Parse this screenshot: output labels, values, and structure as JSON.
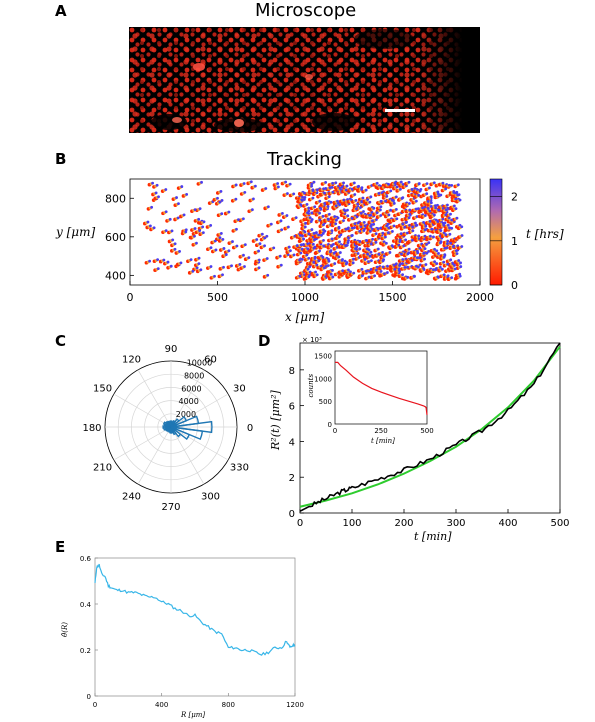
{
  "panels": {
    "a": {
      "label": "A",
      "title": "Microscope"
    },
    "b": {
      "label": "B",
      "title": "Tracking"
    },
    "c": {
      "label": "C"
    },
    "d": {
      "label": "D"
    },
    "e": {
      "label": "E"
    }
  },
  "colors": {
    "cells": "#e0281c",
    "track_early": "#ff2a00",
    "track_mid": "#f2a23a",
    "track_late": "#4b3cf0",
    "rose": "#1f77b4",
    "msd_data": "#000000",
    "msd_fit": "#2ecc2e",
    "counts": "#e8141e",
    "theta": "#38b6e8"
  },
  "chart_data": [
    {
      "panel": "B",
      "type": "scatter",
      "xlabel": "x [μm]",
      "ylabel": "y [μm]",
      "xlim": [
        0,
        2000
      ],
      "ylim": [
        350,
        900
      ],
      "xticks": [
        "0",
        "500",
        "1000",
        "1500",
        "2000"
      ],
      "yticks": [
        "400",
        "600",
        "800"
      ],
      "colorbar": {
        "label": "t [hrs]",
        "ticks": [
          "0",
          "1",
          "2"
        ],
        "range": [
          0,
          2.4
        ]
      }
    },
    {
      "panel": "C",
      "type": "bar",
      "subtype": "polar-histogram",
      "angle_ticks": [
        "0",
        "30",
        "60",
        "90",
        "120",
        "150",
        "180",
        "210",
        "240",
        "270",
        "300",
        "330"
      ],
      "radial_ticks": [
        "2000",
        "4000",
        "6000",
        "8000",
        "10000"
      ],
      "rmax": 10000,
      "bin_width_deg": 15,
      "bins_deg": [
        0,
        15,
        30,
        45,
        60,
        75,
        90,
        105,
        120,
        135,
        150,
        165,
        180,
        195,
        210,
        225,
        240,
        255,
        270,
        285,
        300,
        315,
        330,
        345
      ],
      "values": [
        6200,
        4200,
        2500,
        1500,
        1000,
        800,
        900,
        800,
        900,
        1000,
        1200,
        1000,
        1200,
        1100,
        900,
        800,
        700,
        800,
        900,
        900,
        1200,
        1800,
        3000,
        4800
      ]
    },
    {
      "panel": "D",
      "type": "line",
      "xlabel": "t [min]",
      "ylabel": "R²(t) [μm²]",
      "y_multiplier": "× 10³",
      "xlim": [
        0,
        500
      ],
      "ylim": [
        0,
        9.5
      ],
      "xticks": [
        "0",
        "100",
        "200",
        "300",
        "400",
        "500"
      ],
      "yticks": [
        "0",
        "2",
        "4",
        "6",
        "8"
      ],
      "series": [
        {
          "x": [
            0,
            20,
            50,
            80,
            100,
            150,
            200,
            250,
            300,
            350,
            400,
            450,
            500
          ],
          "y": [
            0.1,
            0.4,
            0.8,
            1.2,
            1.4,
            1.9,
            2.4,
            3.0,
            3.8,
            4.6,
            5.7,
            7.2,
            9.5
          ]
        },
        {
          "x": [
            0,
            50,
            100,
            150,
            200,
            250,
            300,
            350,
            400,
            450,
            500
          ],
          "y": [
            0.35,
            0.7,
            1.1,
            1.6,
            2.2,
            2.9,
            3.7,
            4.7,
            5.9,
            7.4,
            9.3
          ]
        }
      ],
      "inset": {
        "xlabel": "t [min]",
        "ylabel": "counts",
        "xlim": [
          0,
          500
        ],
        "ylim": [
          0,
          1600
        ],
        "xticks": [
          "0",
          "250",
          "500"
        ],
        "yticks": [
          "0",
          "500",
          "1000",
          "1500"
        ],
        "x": [
          0,
          15,
          30,
          60,
          100,
          150,
          200,
          250,
          300,
          350,
          400,
          450,
          480,
          490,
          495,
          500
        ],
        "y": [
          1350,
          1350,
          1280,
          1180,
          1030,
          890,
          780,
          700,
          630,
          560,
          500,
          440,
          400,
          380,
          360,
          200
        ]
      }
    },
    {
      "panel": "E",
      "type": "line",
      "xlabel": "R [μm]",
      "ylabel": "θ̂(R)",
      "xlim": [
        0,
        1200
      ],
      "ylim": [
        0,
        0.6
      ],
      "xticks": [
        "0",
        "400",
        "800",
        "1200"
      ],
      "yticks": [
        "0",
        "0.2",
        "0.4",
        "0.6"
      ],
      "x": [
        0,
        10,
        25,
        40,
        60,
        80,
        100,
        130,
        160,
        200,
        240,
        280,
        320,
        360,
        400,
        440,
        480,
        520,
        560,
        600,
        640,
        680,
        720,
        760,
        800,
        840,
        880,
        920,
        960,
        1000,
        1040,
        1080,
        1120,
        1150,
        1170,
        1190,
        1200
      ],
      "y": [
        0.49,
        0.56,
        0.57,
        0.53,
        0.52,
        0.48,
        0.47,
        0.46,
        0.46,
        0.45,
        0.45,
        0.44,
        0.43,
        0.43,
        0.41,
        0.4,
        0.38,
        0.37,
        0.35,
        0.35,
        0.32,
        0.3,
        0.28,
        0.27,
        0.21,
        0.21,
        0.2,
        0.2,
        0.19,
        0.18,
        0.19,
        0.21,
        0.21,
        0.24,
        0.21,
        0.22,
        0.22
      ]
    }
  ]
}
